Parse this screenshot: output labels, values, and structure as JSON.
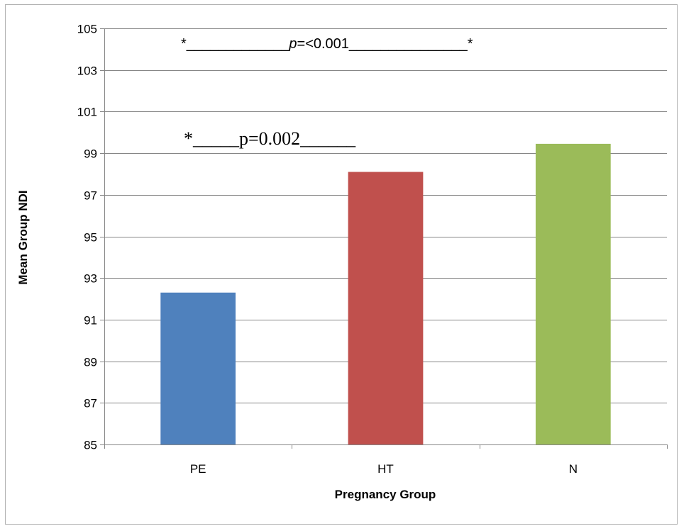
{
  "chart_data": {
    "type": "bar",
    "categories": [
      "PE",
      "HT",
      "N"
    ],
    "values": [
      92.3,
      98.1,
      99.45
    ],
    "colors": [
      "#4f81bd",
      "#c0504d",
      "#9bbb59"
    ],
    "xlabel": "Pregnancy Group",
    "ylabel": "Mean Group NDI",
    "ylim": [
      85,
      105
    ],
    "yticks": [
      85,
      87,
      89,
      91,
      93,
      95,
      97,
      99,
      101,
      103,
      105
    ],
    "grid": true,
    "legend": "none",
    "annotations": [
      {
        "id": "pe-vs-n",
        "text_prefix": "*_____________",
        "text_italic": "p",
        "text_suffix": "=<0.001_______________*"
      },
      {
        "id": "pe-vs-ht",
        "text": "*_____p=0.002______"
      }
    ]
  }
}
